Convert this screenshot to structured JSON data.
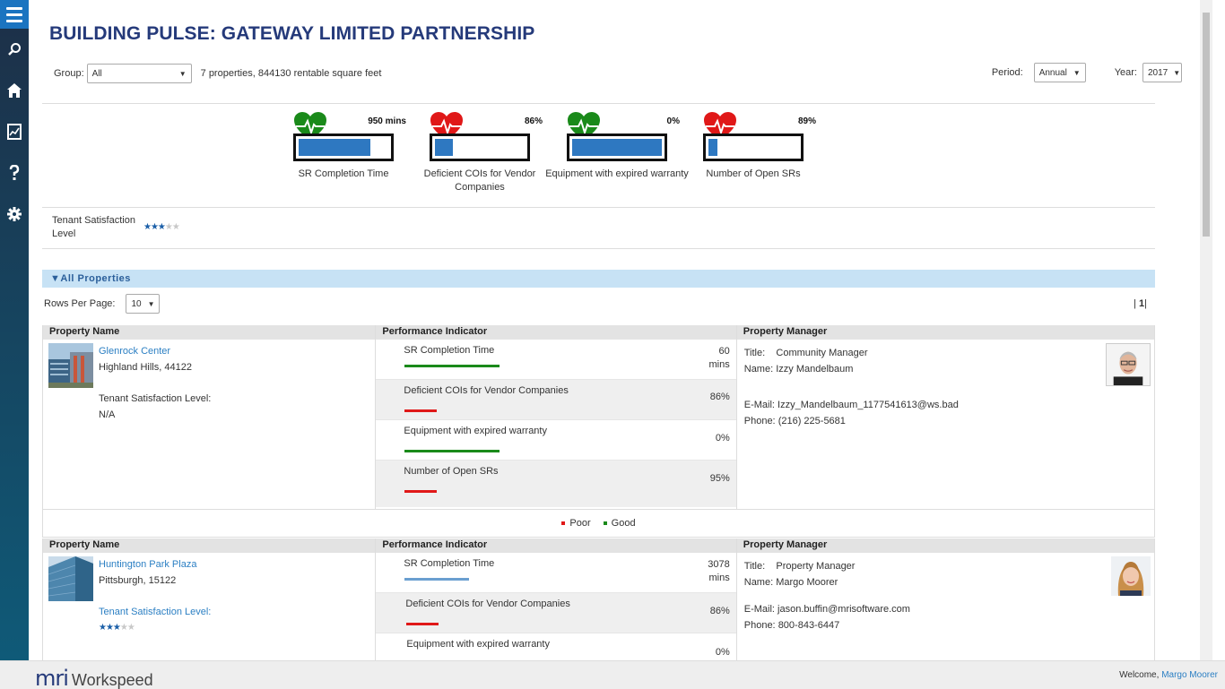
{
  "header": {
    "title": "BUILDING PULSE: GATEWAY LIMITED PARTNERSHIP"
  },
  "filters": {
    "group_label": "Group:",
    "group_value": "All",
    "summary": "7 properties, 844130 rentable square feet",
    "period_label": "Period:",
    "period_value": "Annual",
    "year_label": "Year:",
    "year_value": "2017"
  },
  "kpis": [
    {
      "label": "SR Completion Time",
      "value": "950 mins",
      "status": "good",
      "fill": 0.78
    },
    {
      "label": "Deficient COIs for Vendor Companies",
      "value": "86%",
      "status": "poor",
      "fill": 0.2
    },
    {
      "label": "Equipment with expired warranty",
      "value": "0%",
      "status": "good",
      "fill": 1.0
    },
    {
      "label": "Number of Open SRs",
      "value": "89%",
      "status": "poor",
      "fill": 0.1
    }
  ],
  "tenant_satisfaction": {
    "label": "Tenant Satisfaction Level",
    "stars": 3,
    "max_stars": 5
  },
  "section": {
    "title": "All Properties",
    "rows_per_page_label": "Rows Per  Page:",
    "rows_per_page_value": "10",
    "pager_prefix": "|",
    "pager_current": "1",
    "pager_suffix": "|"
  },
  "columns": {
    "property_name": "Property Name",
    "performance_indicator": "Performance Indicator",
    "property_manager": "Property Manager"
  },
  "legend": {
    "poor": "Poor",
    "good": "Good"
  },
  "properties": [
    {
      "name": "Glenrock Center",
      "city": "Highland Hills,  44122",
      "sat_label": "Tenant Satisfaction Level:",
      "sat_value": "N/A",
      "indicators": [
        {
          "name": "SR Completion Time",
          "value_line1": "60",
          "value_line2": "mins",
          "status": "good"
        },
        {
          "name": "Deficient COIs for Vendor Companies",
          "value_line1": "86%",
          "value_line2": "",
          "status": "poor"
        },
        {
          "name": "Equipment with expired warranty",
          "value_line1": "0%",
          "value_line2": "",
          "status": "good"
        },
        {
          "name": "Number of Open SRs",
          "value_line1": "95%",
          "value_line2": "",
          "status": "poor"
        }
      ],
      "manager": {
        "title_label": "Title:",
        "title": "Community Manager",
        "name_label": "Name:",
        "name": "Izzy Mandelbaum",
        "email_label": "E-Mail:",
        "email": "Izzy_Mandelbaum_1177541613@ws.bad",
        "phone_label": "Phone:",
        "phone": "(216) 225-5681"
      }
    },
    {
      "name": "Huntington Park Plaza",
      "city": "Pittsburgh,  15122",
      "sat_label": "Tenant Satisfaction Level:",
      "sat_stars": 3,
      "indicators": [
        {
          "name": "SR Completion Time",
          "value_line1": "3078",
          "value_line2": "mins",
          "status": "neutral"
        },
        {
          "name": "Deficient COIs for Vendor Companies",
          "value_line1": "86%",
          "value_line2": "",
          "status": "poor"
        },
        {
          "name": "Equipment with expired warranty",
          "value_line1": "0%",
          "value_line2": "",
          "status": "good"
        }
      ],
      "manager": {
        "title_label": "Title:",
        "title": "Property Manager",
        "name_label": "Name:",
        "name": "Margo Moorer",
        "email_label": "E-Mail:",
        "email": "jason.buffin@mrisoftware.com",
        "phone_label": "Phone:",
        "phone": "800-843-6447"
      }
    }
  ],
  "footer": {
    "logo_mri": "mri",
    "logo_product": "Workspeed",
    "welcome_prefix": "Welcome,",
    "welcome_user": "Margo Moorer"
  },
  "colors": {
    "title": "#253a7a",
    "good": "#1a8a1a",
    "poor": "#e01818",
    "neutral": "#6a9fd0",
    "bar": "#2e78c1",
    "link": "#2b7fc3"
  },
  "icons": [
    "menu-icon",
    "search-icon",
    "home-icon",
    "report-icon",
    "help-icon",
    "settings-icon",
    "heart-pulse-icon"
  ]
}
